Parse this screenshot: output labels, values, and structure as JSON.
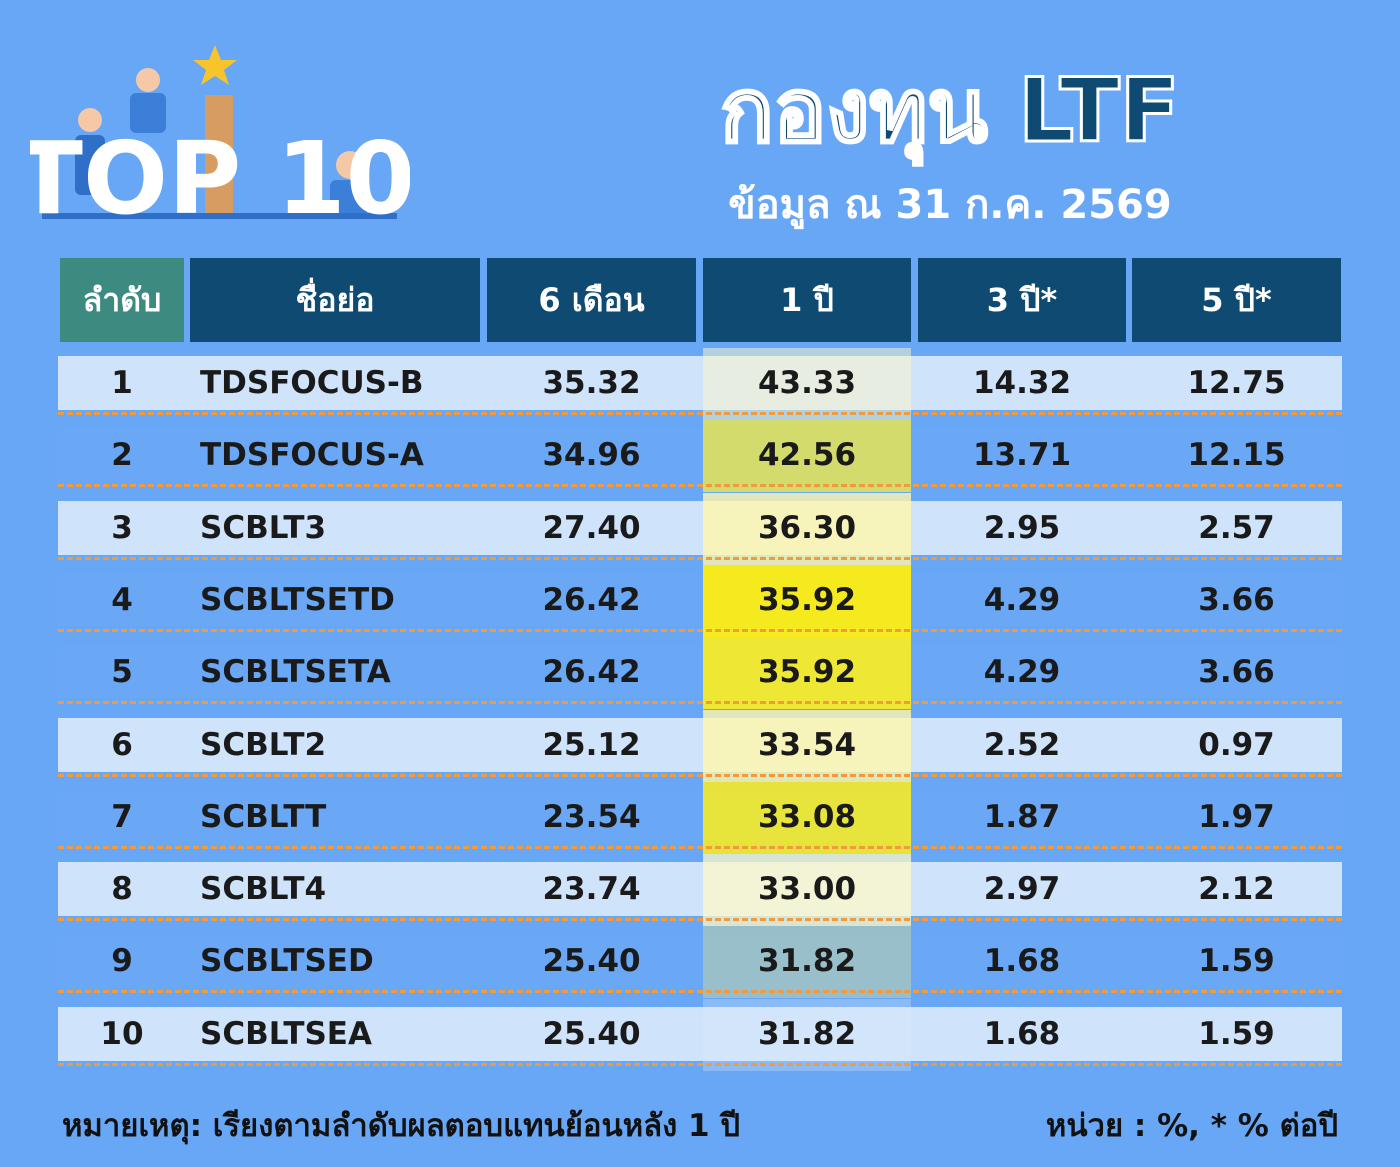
{
  "header": {
    "badge": "TOP 10",
    "title": "กองทุน LTF",
    "subtitle": "ข้อมูล ณ 31 ก.ค. 2569"
  },
  "table": {
    "columns": [
      "ลำดับ",
      "ชื่อย่อ",
      "6 เดือน",
      "1 ปี",
      "3 ปี*",
      "5 ปี*"
    ],
    "rows": [
      [
        "1",
        "TDSFOCUS-B",
        "35.32",
        "43.33",
        "14.32",
        "12.75"
      ],
      [
        "2",
        "TDSFOCUS-A",
        "34.96",
        "42.56",
        "13.71",
        "12.15"
      ],
      [
        "3",
        "SCBLT3",
        "27.40",
        "36.30",
        "2.95",
        "2.57"
      ],
      [
        "4",
        "SCBLTSETD",
        "26.42",
        "35.92",
        "4.29",
        "3.66"
      ],
      [
        "5",
        "SCBLTSETA",
        "26.42",
        "35.92",
        "4.29",
        "3.66"
      ],
      [
        "6",
        "SCBLT2",
        "25.12",
        "33.54",
        "2.52",
        "0.97"
      ],
      [
        "7",
        "SCBLTT",
        "23.54",
        "33.08",
        "1.87",
        "1.97"
      ],
      [
        "8",
        "SCBLT4",
        "23.74",
        "33.00",
        "2.97",
        "2.12"
      ],
      [
        "9",
        "SCBLTSED",
        "25.40",
        "31.82",
        "1.68",
        "1.59"
      ],
      [
        "10",
        "SCBLTSEA",
        "25.40",
        "31.82",
        "1.68",
        "1.59"
      ]
    ]
  },
  "footer": {
    "note": "หมายเหตุ: เรียงตามลำดับผลตอบแทนย้อนหลัง 1 ปี",
    "unit": "หน่วย : %, * % ต่อปี"
  }
}
